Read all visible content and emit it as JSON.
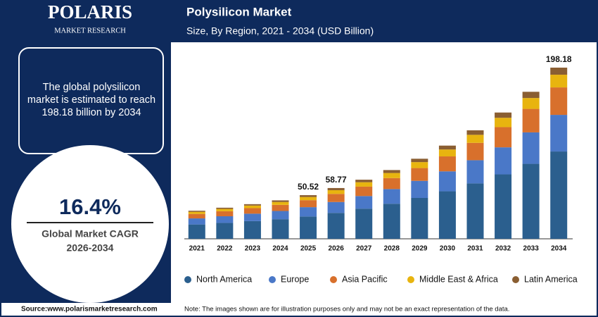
{
  "brand": {
    "name": "POLARIS",
    "tagline": "MARKET RESEARCH"
  },
  "sidebar": {
    "summary": [
      "The global polysilicon",
      "market is estimated to reach",
      "198.18 billion by 2034"
    ],
    "cagr": "16.4%",
    "cagr_label": "Global Market CAGR",
    "cagr_period": "2026-2034"
  },
  "source": "Source:www.polarismarketresearch.com",
  "note": "Note: The images shown are for illustration purposes only and may not be an exact representation of the data.",
  "chart_data": {
    "type": "stacked-bar",
    "title": "Polysilicon Market",
    "subtitle": "Size, By Region, 2021 - 2034 (USD Billion)",
    "categories": [
      "2021",
      "2022",
      "2023",
      "2024",
      "2025",
      "2026",
      "2027",
      "2028",
      "2029",
      "2030",
      "2031",
      "2032",
      "2033",
      "2034"
    ],
    "series": [
      {
        "name": "North America",
        "color": "#2b5f8e",
        "values": [
          16.6,
          18.4,
          20.5,
          22.7,
          25.82,
          30.0,
          34.9,
          40.6,
          47.3,
          55.0,
          64.1,
          74.6,
          86.8,
          101.08
        ]
      },
      {
        "name": "Europe",
        "color": "#4a78c8",
        "values": [
          7.0,
          7.7,
          8.6,
          9.5,
          10.8,
          12.6,
          14.6,
          17.0,
          19.8,
          23.1,
          26.9,
          31.3,
          36.4,
          42.4
        ]
      },
      {
        "name": "Asia Pacific",
        "color": "#d8702c",
        "values": [
          5.2,
          5.8,
          6.4,
          7.1,
          8.1,
          9.4,
          10.9,
          12.7,
          14.8,
          17.3,
          20.1,
          23.4,
          27.2,
          31.8
        ]
      },
      {
        "name": "Middle East & Africa",
        "color": "#e8b40f",
        "values": [
          2.4,
          2.7,
          3.0,
          3.3,
          3.7,
          4.3,
          5.1,
          5.9,
          6.9,
          8.0,
          9.3,
          10.8,
          12.6,
          14.7
        ]
      },
      {
        "name": "Latin America",
        "color": "#8a5e32",
        "values": [
          1.3,
          1.4,
          1.6,
          1.9,
          2.1,
          2.47,
          2.9,
          3.4,
          3.9,
          4.5,
          5.2,
          6.1,
          7.2,
          8.2
        ]
      }
    ],
    "totals": [
      null,
      null,
      null,
      null,
      50.52,
      58.77,
      null,
      null,
      null,
      null,
      null,
      null,
      null,
      198.18
    ]
  }
}
